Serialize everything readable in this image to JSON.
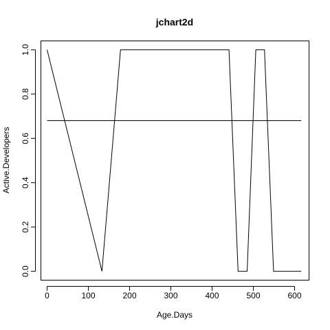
{
  "chart_data": {
    "type": "line",
    "title": "jchart2d",
    "xlabel": "Age.Days",
    "ylabel": "Active.Developers",
    "xlim": [
      -15,
      635
    ],
    "ylim": [
      -0.04,
      1.04
    ],
    "x_ticks": [
      0,
      100,
      200,
      300,
      400,
      500,
      600
    ],
    "y_ticks": [
      0.0,
      0.2,
      0.4,
      0.6,
      0.8,
      1.0
    ],
    "x_tick_labels": [
      "0",
      "100",
      "200",
      "300",
      "400",
      "500",
      "600"
    ],
    "y_tick_labels": [
      "0.0",
      "0.2",
      "0.4",
      "0.6",
      "0.8",
      "1.0"
    ],
    "grid": false,
    "legend": "none",
    "series": [
      {
        "x": [
          0,
          133,
          178,
          441,
          463,
          485,
          506,
          527,
          549,
          616
        ],
        "y": [
          1.0,
          0.0,
          1.0,
          1.0,
          0.0,
          0.0,
          1.0,
          1.0,
          0.0,
          0.0
        ]
      },
      {
        "x": [
          0,
          616
        ],
        "y": [
          0.68,
          0.68
        ]
      }
    ]
  }
}
